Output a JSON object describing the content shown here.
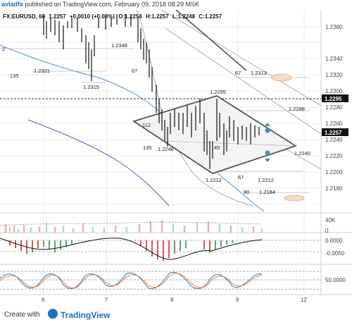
{
  "header": {
    "author": "avladfx",
    "published_text": "published on TradingView.com, February 09, 2018 08:29 MSK"
  },
  "symbol_line": {
    "symbol": "FX:EURUSD, 60",
    "last": "1.2257",
    "change": "+0.0010 (+0.08%)",
    "o_label": "O:",
    "o": "1.2254",
    "h_label": "H:",
    "h": "1.2257",
    "l_label": "L:",
    "l": "1.2248",
    "c_label": "C:",
    "c": "1.2257"
  },
  "price_axis": {
    "ticks": [
      "1.2360",
      "1.2340",
      "1.2320",
      "1.2300",
      "1.2280",
      "1.2260",
      "1.2240",
      "1.2220",
      "1.2200",
      "1.2180"
    ],
    "markers": [
      {
        "label": "1.2295",
        "color": "#111111"
      },
      {
        "label": "1.2257",
        "color": "#111111"
      }
    ]
  },
  "annotations": [
    {
      "text": "2"
    },
    {
      "text": "1.2348"
    },
    {
      "text": "135"
    },
    {
      "text": "1.2321"
    },
    {
      "text": "1.2315"
    },
    {
      "text": "67"
    },
    {
      "text": "67"
    },
    {
      "text": "1.2313"
    },
    {
      "text": "1.2295"
    },
    {
      "text": "1.2288"
    },
    {
      "text": "112"
    },
    {
      "text": "135"
    },
    {
      "text": "1.2246"
    },
    {
      "text": "45"
    },
    {
      "text": "1.2240"
    },
    {
      "text": "1.2212"
    },
    {
      "text": "67"
    },
    {
      "text": "1.2212"
    },
    {
      "text": "90"
    },
    {
      "text": "1.2184"
    }
  ],
  "volume_axis": {
    "ticks": [
      "40K",
      "0"
    ]
  },
  "macd_axis": {
    "ticks": [
      "0.0000",
      "-0.0050"
    ]
  },
  "stoch_axis": {
    "ticks": [
      "50.0000"
    ]
  },
  "time_axis": {
    "ticks": [
      "6",
      "7",
      "8",
      "9",
      "12"
    ]
  },
  "footer": {
    "created_with": "Create with",
    "brand": "TradingView"
  },
  "colors": {
    "up": "#2e8b57",
    "down": "#c0392b",
    "diamond": "#555555",
    "ma_blue": "#6fa8dc",
    "ma_purple": "#6a4fc7",
    "brand_blue": "#1e6ec5"
  }
}
